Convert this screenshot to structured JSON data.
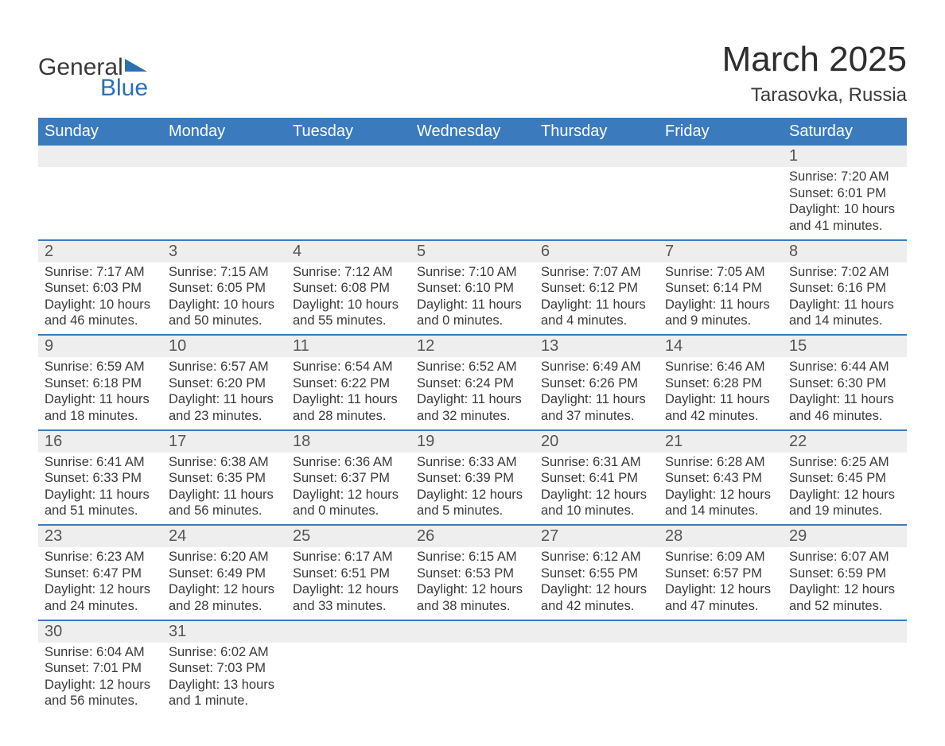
{
  "brand": {
    "part1": "General",
    "part2": "Blue",
    "accent_color": "#2c6fb2"
  },
  "title": "March 2025",
  "location": "Tarasovka, Russia",
  "header_bg": "#3b7bbd",
  "header_fg": "#ffffff",
  "row_sep_color": "#3b7bbd",
  "daynum_bg": "#eeeeee",
  "weekdays": [
    "Sunday",
    "Monday",
    "Tuesday",
    "Wednesday",
    "Thursday",
    "Friday",
    "Saturday"
  ],
  "weeks": [
    [
      null,
      null,
      null,
      null,
      null,
      null,
      {
        "n": "1",
        "sr": "7:20 AM",
        "ss": "6:01 PM",
        "dl": "10 hours and 41 minutes."
      }
    ],
    [
      {
        "n": "2",
        "sr": "7:17 AM",
        "ss": "6:03 PM",
        "dl": "10 hours and 46 minutes."
      },
      {
        "n": "3",
        "sr": "7:15 AM",
        "ss": "6:05 PM",
        "dl": "10 hours and 50 minutes."
      },
      {
        "n": "4",
        "sr": "7:12 AM",
        "ss": "6:08 PM",
        "dl": "10 hours and 55 minutes."
      },
      {
        "n": "5",
        "sr": "7:10 AM",
        "ss": "6:10 PM",
        "dl": "11 hours and 0 minutes."
      },
      {
        "n": "6",
        "sr": "7:07 AM",
        "ss": "6:12 PM",
        "dl": "11 hours and 4 minutes."
      },
      {
        "n": "7",
        "sr": "7:05 AM",
        "ss": "6:14 PM",
        "dl": "11 hours and 9 minutes."
      },
      {
        "n": "8",
        "sr": "7:02 AM",
        "ss": "6:16 PM",
        "dl": "11 hours and 14 minutes."
      }
    ],
    [
      {
        "n": "9",
        "sr": "6:59 AM",
        "ss": "6:18 PM",
        "dl": "11 hours and 18 minutes."
      },
      {
        "n": "10",
        "sr": "6:57 AM",
        "ss": "6:20 PM",
        "dl": "11 hours and 23 minutes."
      },
      {
        "n": "11",
        "sr": "6:54 AM",
        "ss": "6:22 PM",
        "dl": "11 hours and 28 minutes."
      },
      {
        "n": "12",
        "sr": "6:52 AM",
        "ss": "6:24 PM",
        "dl": "11 hours and 32 minutes."
      },
      {
        "n": "13",
        "sr": "6:49 AM",
        "ss": "6:26 PM",
        "dl": "11 hours and 37 minutes."
      },
      {
        "n": "14",
        "sr": "6:46 AM",
        "ss": "6:28 PM",
        "dl": "11 hours and 42 minutes."
      },
      {
        "n": "15",
        "sr": "6:44 AM",
        "ss": "6:30 PM",
        "dl": "11 hours and 46 minutes."
      }
    ],
    [
      {
        "n": "16",
        "sr": "6:41 AM",
        "ss": "6:33 PM",
        "dl": "11 hours and 51 minutes."
      },
      {
        "n": "17",
        "sr": "6:38 AM",
        "ss": "6:35 PM",
        "dl": "11 hours and 56 minutes."
      },
      {
        "n": "18",
        "sr": "6:36 AM",
        "ss": "6:37 PM",
        "dl": "12 hours and 0 minutes."
      },
      {
        "n": "19",
        "sr": "6:33 AM",
        "ss": "6:39 PM",
        "dl": "12 hours and 5 minutes."
      },
      {
        "n": "20",
        "sr": "6:31 AM",
        "ss": "6:41 PM",
        "dl": "12 hours and 10 minutes."
      },
      {
        "n": "21",
        "sr": "6:28 AM",
        "ss": "6:43 PM",
        "dl": "12 hours and 14 minutes."
      },
      {
        "n": "22",
        "sr": "6:25 AM",
        "ss": "6:45 PM",
        "dl": "12 hours and 19 minutes."
      }
    ],
    [
      {
        "n": "23",
        "sr": "6:23 AM",
        "ss": "6:47 PM",
        "dl": "12 hours and 24 minutes."
      },
      {
        "n": "24",
        "sr": "6:20 AM",
        "ss": "6:49 PM",
        "dl": "12 hours and 28 minutes."
      },
      {
        "n": "25",
        "sr": "6:17 AM",
        "ss": "6:51 PM",
        "dl": "12 hours and 33 minutes."
      },
      {
        "n": "26",
        "sr": "6:15 AM",
        "ss": "6:53 PM",
        "dl": "12 hours and 38 minutes."
      },
      {
        "n": "27",
        "sr": "6:12 AM",
        "ss": "6:55 PM",
        "dl": "12 hours and 42 minutes."
      },
      {
        "n": "28",
        "sr": "6:09 AM",
        "ss": "6:57 PM",
        "dl": "12 hours and 47 minutes."
      },
      {
        "n": "29",
        "sr": "6:07 AM",
        "ss": "6:59 PM",
        "dl": "12 hours and 52 minutes."
      }
    ],
    [
      {
        "n": "30",
        "sr": "6:04 AM",
        "ss": "7:01 PM",
        "dl": "12 hours and 56 minutes."
      },
      {
        "n": "31",
        "sr": "6:02 AM",
        "ss": "7:03 PM",
        "dl": "13 hours and 1 minute."
      },
      null,
      null,
      null,
      null,
      null
    ]
  ],
  "labels": {
    "sunrise": "Sunrise: ",
    "sunset": "Sunset: ",
    "daylight": "Daylight: "
  }
}
